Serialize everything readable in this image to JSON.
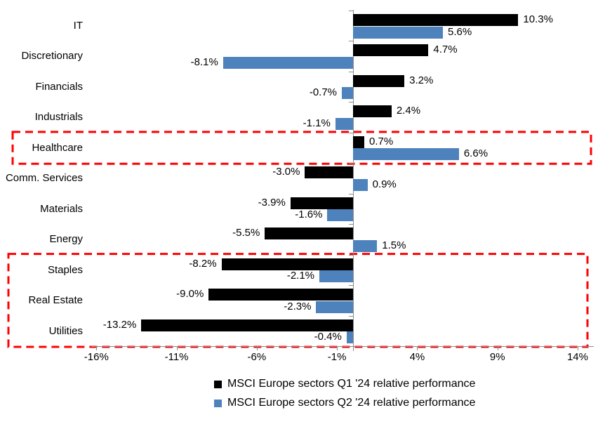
{
  "chart_data": {
    "type": "bar",
    "orientation": "horizontal",
    "title": "",
    "categories": [
      "IT",
      "Discretionary",
      "Financials",
      "Industrials",
      "Healthcare",
      "Comm. Services",
      "Materials",
      "Energy",
      "Staples",
      "Real Estate",
      "Utilities"
    ],
    "series": [
      {
        "name": "MSCI Europe sectors Q1 '24 relative performance",
        "color": "#000000",
        "values": [
          10.3,
          4.7,
          3.2,
          2.4,
          0.7,
          -3.0,
          -3.9,
          -5.5,
          -8.2,
          -9.0,
          -13.2
        ],
        "value_labels": [
          "10.3%",
          "4.7%",
          "3.2%",
          "2.4%",
          "0.7%",
          "-3.0%",
          "-3.9%",
          "-5.5%",
          "-8.2%",
          "-9.0%",
          "-13.2%"
        ]
      },
      {
        "name": "MSCI Europe sectors Q2 '24 relative performance",
        "color": "#4E82BC",
        "values": [
          5.6,
          -8.1,
          -0.7,
          -1.1,
          6.6,
          0.9,
          -1.6,
          1.5,
          -2.1,
          -2.3,
          -0.4
        ],
        "value_labels": [
          "5.6%",
          "-8.1%",
          "-0.7%",
          "-1.1%",
          "6.6%",
          "0.9%",
          "-1.6%",
          "1.5%",
          "-2.1%",
          "-2.3%",
          "-0.4%"
        ]
      }
    ],
    "x_axis": {
      "tick_labels": [
        "-16%",
        "-11%",
        "-6%",
        "-1%",
        "4%",
        "9%",
        "14%"
      ],
      "tick_values": [
        -16,
        -11,
        -6,
        -1,
        4,
        9,
        14
      ],
      "min": -16,
      "max": 14
    },
    "legend_position": "bottom",
    "grid": false,
    "annotations": {
      "highlight_color": "#FF0000",
      "boxes": [
        {
          "name": "healthcare-highlight",
          "rows": [
            4,
            4
          ]
        },
        {
          "name": "defensives-highlight",
          "rows": [
            8,
            10
          ]
        }
      ]
    },
    "colors": {
      "axis": "#8c8c8c",
      "q1_bar": "#000000",
      "q2_bar": "#4E82BC",
      "highlight": "#FF0000"
    }
  }
}
